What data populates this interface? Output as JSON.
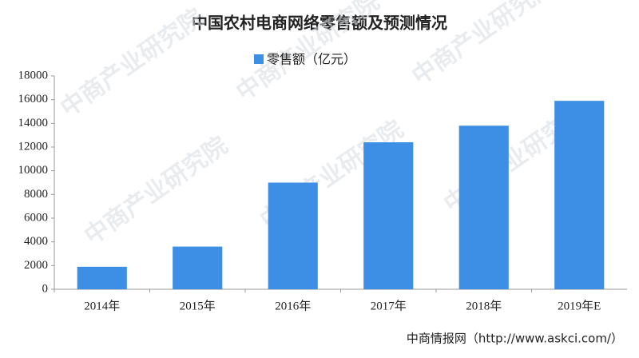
{
  "chart_data": {
    "type": "bar",
    "title": "中国农村电商网络零售额及预测情况",
    "source": "中商情报网（http://www.askci.com/）",
    "watermark": "中商产业研究院",
    "categories": [
      "2014年",
      "2015年",
      "2016年",
      "2017年",
      "2018年",
      "2019年E"
    ],
    "series": [
      {
        "name": "零售额（亿元）",
        "color": "#3d8fe6",
        "values": [
          1900,
          3600,
          9000,
          12400,
          13800,
          15900
        ]
      }
    ],
    "ylim": [
      0,
      18000
    ],
    "yticks": [
      0,
      2000,
      4000,
      6000,
      8000,
      10000,
      12000,
      14000,
      16000,
      18000
    ],
    "grid": false
  }
}
